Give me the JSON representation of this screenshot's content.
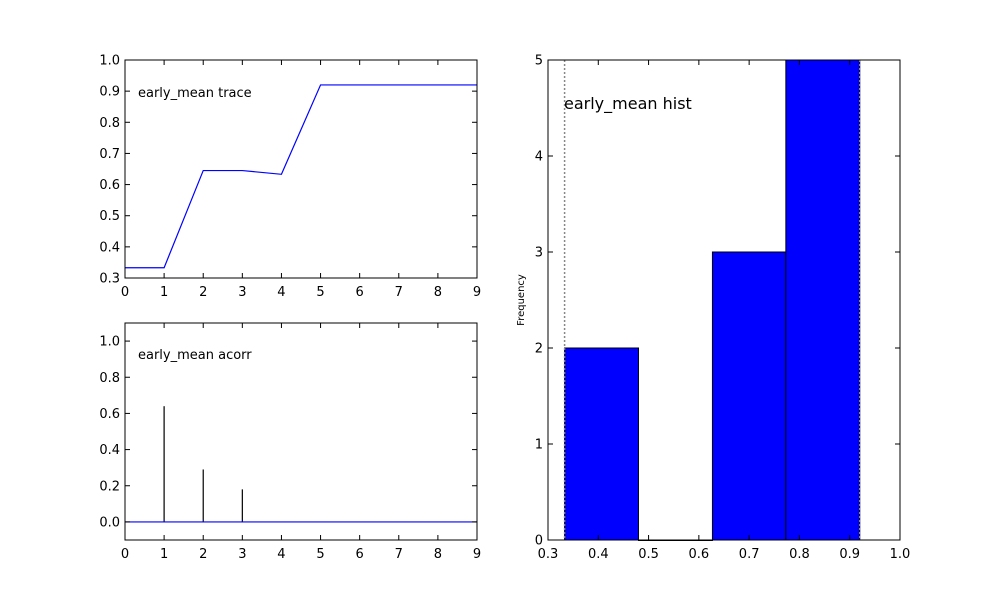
{
  "chart_data": [
    {
      "type": "line",
      "label": "early_mean trace",
      "x": [
        0,
        1,
        2,
        3,
        4,
        5,
        6,
        7,
        8,
        9
      ],
      "series": [
        {
          "values": [
            0.333,
            0.333,
            0.645,
            0.645,
            0.633,
            0.92,
            0.92,
            0.92,
            0.92,
            0.92
          ]
        }
      ],
      "xlim": [
        0,
        9
      ],
      "ylim": [
        0.3,
        1.0
      ],
      "xticks": [
        "0",
        "1",
        "2",
        "3",
        "4",
        "5",
        "6",
        "7",
        "8",
        "9"
      ],
      "yticks": [
        "0.3",
        "0.4",
        "0.5",
        "0.6",
        "0.7",
        "0.8",
        "0.9",
        "1.0"
      ],
      "color": "#0000ff"
    },
    {
      "type": "bar",
      "label": "early_mean acorr",
      "x": [
        0,
        1,
        2,
        3,
        4,
        5,
        6,
        7,
        8,
        9
      ],
      "values": [
        0,
        0.64,
        0.29,
        0.18,
        0,
        0,
        0,
        0,
        0,
        0
      ],
      "xlim": [
        0,
        9
      ],
      "ylim": [
        -0.1,
        1.1
      ],
      "xticks": [
        "0",
        "1",
        "2",
        "3",
        "4",
        "5",
        "6",
        "7",
        "8",
        "9"
      ],
      "yticks": [
        "0.0",
        "0.2",
        "0.4",
        "0.6",
        "0.8",
        "1.0"
      ],
      "baseline_color": "#0000ff",
      "stem_color": "#000000"
    },
    {
      "type": "bar",
      "label": "early_mean hist",
      "ylabel": "Frequency",
      "bins": [
        {
          "start": 0.333,
          "end": 0.48,
          "count": 2
        },
        {
          "start": 0.48,
          "end": 0.627,
          "count": 0
        },
        {
          "start": 0.627,
          "end": 0.773,
          "count": 3
        },
        {
          "start": 0.773,
          "end": 0.92,
          "count": 5
        }
      ],
      "quantile_lines": [
        0.333,
        0.92
      ],
      "xlim": [
        0.3,
        1.0
      ],
      "ylim": [
        0,
        5
      ],
      "xticks": [
        "0.3",
        "0.4",
        "0.5",
        "0.6",
        "0.7",
        "0.8",
        "0.9",
        "1.0"
      ],
      "yticks": [
        "0",
        "1",
        "2",
        "3",
        "4",
        "5"
      ],
      "color": "#0000ff"
    }
  ]
}
